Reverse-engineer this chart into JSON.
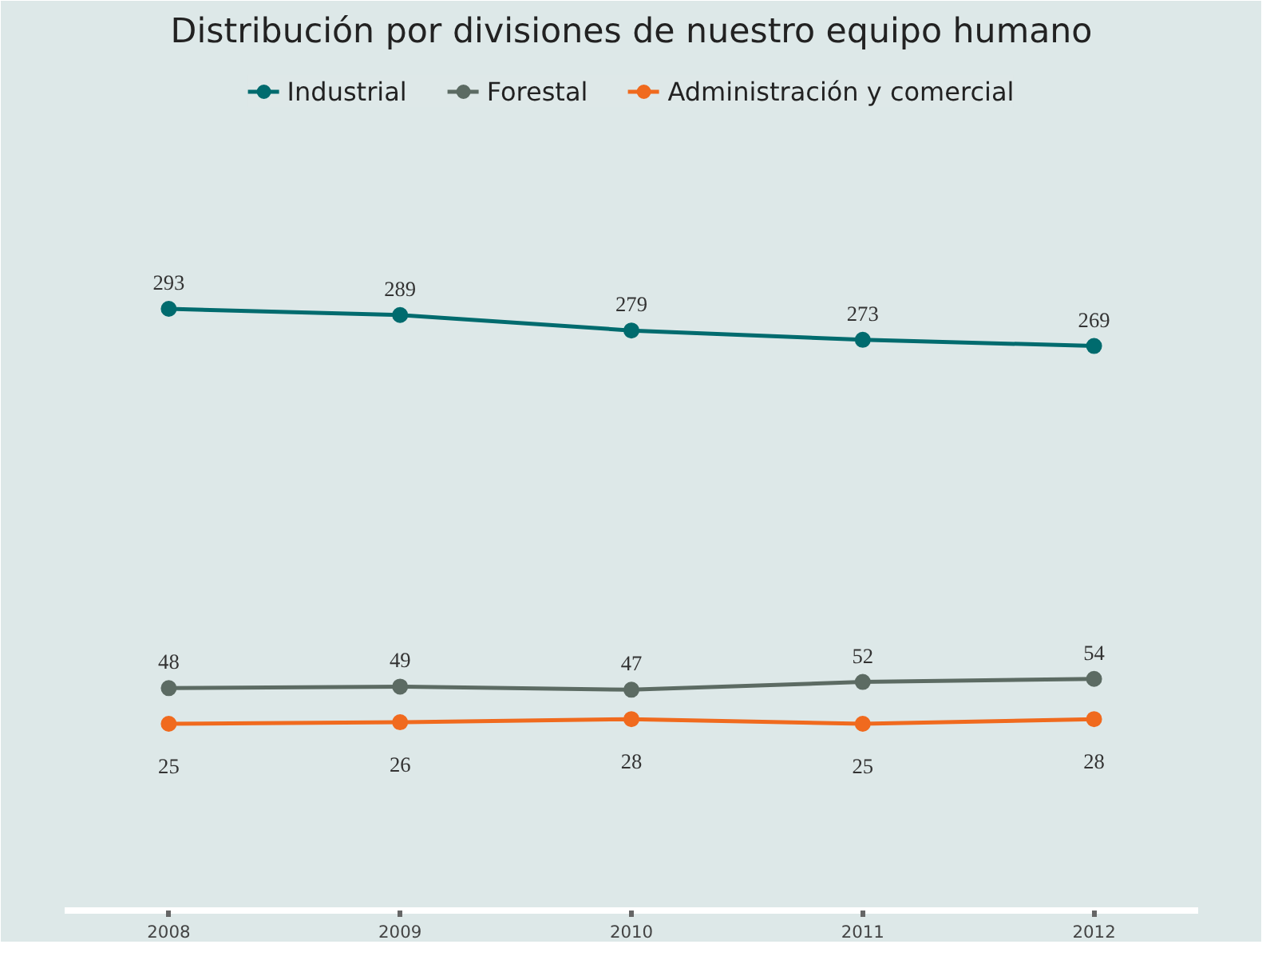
{
  "chart_data": {
    "type": "line",
    "title": "Distribución por divisiones de nuestro equipo humano",
    "categories": [
      "2008",
      "2009",
      "2010",
      "2011",
      "2012"
    ],
    "series": [
      {
        "name": "Industrial",
        "color": "#006b6e",
        "values": [
          293,
          289,
          279,
          273,
          269
        ]
      },
      {
        "name": "Forestal",
        "color": "#5c6b63",
        "values": [
          48,
          49,
          47,
          52,
          54
        ]
      },
      {
        "name": "Administración y comercial",
        "color": "#f06a1e",
        "values": [
          25,
          26,
          28,
          25,
          28
        ]
      }
    ],
    "data_labels": true,
    "marker": "circle",
    "line_style": "solid",
    "legend": "top",
    "grid": false
  }
}
